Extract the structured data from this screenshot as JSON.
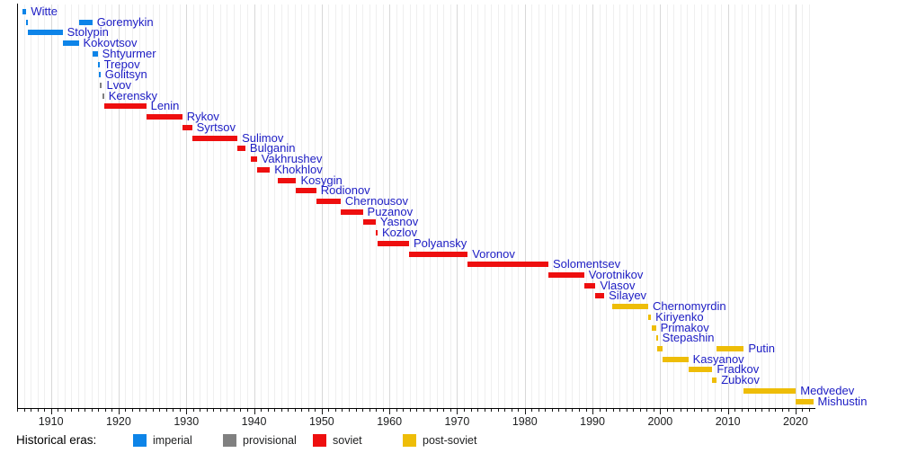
{
  "chart_data": {
    "type": "timeline",
    "title": "",
    "x_axis": {
      "range": [
        1905,
        2022.8
      ],
      "decade_ticks": [
        1910,
        1920,
        1930,
        1940,
        1950,
        1960,
        1970,
        1980,
        1990,
        2000,
        2010,
        2020
      ],
      "minor_tick_step": 1,
      "grid": true
    },
    "legend": {
      "title": "Historical eras:",
      "items": [
        {
          "label": "imperial",
          "era": "imperial",
          "color": "#0d84e8"
        },
        {
          "label": "provisional",
          "era": "provisional",
          "color": "#808080"
        },
        {
          "label": "soviet",
          "era": "soviet",
          "color": "#ee0f0f"
        },
        {
          "label": "post-soviet",
          "era": "post-soviet",
          "color": "#eebd08"
        }
      ]
    },
    "era_colors": {
      "imperial": "#0d84e8",
      "provisional": "#808080",
      "soviet": "#ee0f0f",
      "post-soviet": "#eebd08"
    },
    "people": [
      {
        "name": "Witte",
        "era": "imperial",
        "terms": [
          [
            1905.85,
            1906.37
          ]
        ]
      },
      {
        "name": "Goremykin",
        "era": "imperial",
        "terms": [
          [
            1906.37,
            1906.56
          ],
          [
            1914.1,
            1916.12
          ]
        ]
      },
      {
        "name": "Stolypin",
        "era": "imperial",
        "terms": [
          [
            1906.56,
            1911.72
          ]
        ]
      },
      {
        "name": "Kokovtsov",
        "era": "imperial",
        "terms": [
          [
            1911.72,
            1914.1
          ]
        ]
      },
      {
        "name": "Shtyurmer",
        "era": "imperial",
        "terms": [
          [
            1916.12,
            1916.9
          ]
        ]
      },
      {
        "name": "Trepov",
        "era": "imperial",
        "terms": [
          [
            1916.9,
            1917.05
          ]
        ]
      },
      {
        "name": "Golitsyn",
        "era": "imperial",
        "terms": [
          [
            1917.05,
            1917.2
          ]
        ]
      },
      {
        "name": "Lvov",
        "era": "provisional",
        "terms": [
          [
            1917.2,
            1917.55
          ]
        ]
      },
      {
        "name": "Kerensky",
        "era": "provisional",
        "terms": [
          [
            1917.55,
            1917.85
          ]
        ]
      },
      {
        "name": "Lenin",
        "era": "soviet",
        "terms": [
          [
            1917.85,
            1924.07
          ]
        ]
      },
      {
        "name": "Rykov",
        "era": "soviet",
        "terms": [
          [
            1924.1,
            1929.4
          ]
        ]
      },
      {
        "name": "Syrtsov",
        "era": "soviet",
        "terms": [
          [
            1929.4,
            1930.85
          ]
        ]
      },
      {
        "name": "Sulimov",
        "era": "soviet",
        "terms": [
          [
            1930.85,
            1937.55
          ]
        ]
      },
      {
        "name": "Bulganin",
        "era": "soviet",
        "terms": [
          [
            1937.55,
            1938.72
          ]
        ]
      },
      {
        "name": "Vakhrushev",
        "era": "soviet",
        "terms": [
          [
            1939.58,
            1940.42
          ]
        ]
      },
      {
        "name": "Khokhlov",
        "era": "soviet",
        "terms": [
          [
            1940.42,
            1942.35
          ]
        ]
      },
      {
        "name": "Kosygin",
        "era": "soviet",
        "terms": [
          [
            1943.47,
            1946.23
          ]
        ]
      },
      {
        "name": "Rodionov",
        "era": "soviet",
        "terms": [
          [
            1946.23,
            1949.19
          ]
        ]
      },
      {
        "name": "Chernousov",
        "era": "soviet",
        "terms": [
          [
            1949.19,
            1952.8
          ]
        ]
      },
      {
        "name": "Puzanov",
        "era": "soviet",
        "terms": [
          [
            1952.8,
            1956.07
          ]
        ]
      },
      {
        "name": "Yasnov",
        "era": "soviet",
        "terms": [
          [
            1956.07,
            1957.97
          ]
        ]
      },
      {
        "name": "Kozlov",
        "era": "soviet",
        "terms": [
          [
            1957.97,
            1958.25
          ]
        ]
      },
      {
        "name": "Polyansky",
        "era": "soviet",
        "terms": [
          [
            1958.25,
            1962.9
          ]
        ]
      },
      {
        "name": "Voronov",
        "era": "soviet",
        "terms": [
          [
            1962.9,
            1971.56
          ]
        ]
      },
      {
        "name": "Solomentsev",
        "era": "soviet",
        "terms": [
          [
            1971.56,
            1983.48
          ]
        ]
      },
      {
        "name": "Vorotnikov",
        "era": "soviet",
        "terms": [
          [
            1983.48,
            1988.76
          ]
        ]
      },
      {
        "name": "Vlasov",
        "era": "soviet",
        "terms": [
          [
            1988.76,
            1990.45
          ]
        ]
      },
      {
        "name": "Silayev",
        "era": "soviet",
        "terms": [
          [
            1990.45,
            1991.74
          ]
        ]
      },
      {
        "name": "Chernomyrdin",
        "era": "post-soviet",
        "terms": [
          [
            1992.95,
            1998.23
          ]
        ]
      },
      {
        "name": "Kiriyenko",
        "era": "post-soviet",
        "terms": [
          [
            1998.23,
            1998.65
          ]
        ]
      },
      {
        "name": "Primakov",
        "era": "post-soviet",
        "terms": [
          [
            1998.7,
            1999.37
          ]
        ]
      },
      {
        "name": "Stepashin",
        "era": "post-soviet",
        "terms": [
          [
            1999.38,
            1999.61
          ]
        ]
      },
      {
        "name": "Putin",
        "era": "post-soviet",
        "terms": [
          [
            1999.61,
            2000.36
          ],
          [
            2008.36,
            2012.36
          ]
        ]
      },
      {
        "name": "Kasyanov",
        "era": "post-soviet",
        "terms": [
          [
            2000.36,
            2004.15
          ]
        ]
      },
      {
        "name": "Fradkov",
        "era": "post-soviet",
        "terms": [
          [
            2004.17,
            2007.7
          ]
        ]
      },
      {
        "name": "Zubkov",
        "era": "post-soviet",
        "terms": [
          [
            2007.71,
            2008.35
          ]
        ]
      },
      {
        "name": "Medvedev",
        "era": "post-soviet",
        "terms": [
          [
            2012.36,
            2020.04
          ]
        ]
      },
      {
        "name": "Mishustin",
        "era": "post-soviet",
        "terms": [
          [
            2020.04,
            2022.6
          ]
        ]
      }
    ]
  }
}
